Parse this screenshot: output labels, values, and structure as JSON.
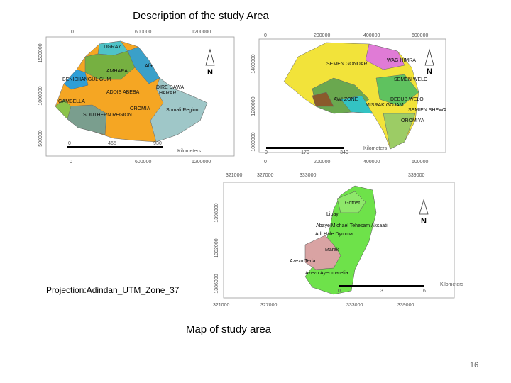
{
  "title": "Description of the study Area",
  "maps": [
    {
      "top_ticks": [
        "0",
        "600000",
        "1200000"
      ],
      "left_ticks": [
        "1500000",
        "1000000",
        "500000"
      ],
      "regions": [
        "TIGRAY",
        "AMHARA",
        "Afar",
        "BENISHANGUL GUM",
        "ADDIS ABEBA",
        "DIRE DAWA",
        "HARARI",
        "GAMBELLA",
        "OROMIA",
        "SOUTHERN REGION",
        "Somali Region"
      ],
      "scale": [
        "0",
        "465",
        "930"
      ],
      "scale_unit": "Kilometers",
      "north": "N"
    },
    {
      "top_ticks": [
        "0",
        "200000",
        "400000",
        "600000"
      ],
      "left_ticks": [
        "1400000",
        "1200000",
        "1000000"
      ],
      "regions": [
        "SEMEN GONDAR",
        "WAG HIMRA",
        "SEMEN WELO",
        "DEBUB WELO",
        "OROMIYA",
        "AWI ZONE",
        "MISRAK GOJAM",
        "SEMIEN SHEWA"
      ],
      "scale": [
        "0",
        "170",
        "340"
      ],
      "scale_unit": "Kilometers",
      "north": "N"
    },
    {
      "top_ticks": [
        "321000",
        "327000",
        "333000",
        "339000"
      ],
      "left_ticks": [
        "1398000",
        "1392000",
        "1386000"
      ],
      "regions": [
        "Gotnet",
        "Libay",
        "Abaye Michael Tehesam Aksaati",
        "Adi Hale Dyroma",
        "Marak",
        "Azezo Teda",
        "Azezo Ayer marefia"
      ],
      "scale": [
        "0",
        "3",
        "6"
      ],
      "scale_unit": "Kilometers",
      "north": "N"
    }
  ],
  "projection": "Projection:Adindan_UTM_Zone_37",
  "caption": "Map of study area",
  "page_number": "16"
}
